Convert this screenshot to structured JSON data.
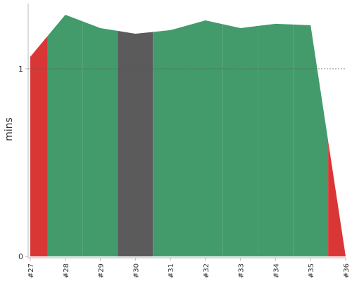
{
  "chart_data": {
    "type": "area",
    "y_label": "mins",
    "categories": [
      "#27",
      "#28",
      "#29",
      "#30",
      "#31",
      "#32",
      "#33",
      "#34",
      "#35",
      "#36"
    ],
    "values": [
      1.064,
      1.288,
      1.217,
      1.187,
      1.206,
      1.258,
      1.217,
      1.24,
      1.232,
      0
    ],
    "point_colors": [
      "#d93636",
      "#439b6b",
      "#439b6b",
      "#5b5b5b",
      "#439b6b",
      "#439b6b",
      "#439b6b",
      "#439b6b",
      "#439b6b",
      "#d93636"
    ],
    "ylim": [
      0,
      1.348
    ],
    "yticks": [
      0,
      1
    ],
    "grid": true
  }
}
